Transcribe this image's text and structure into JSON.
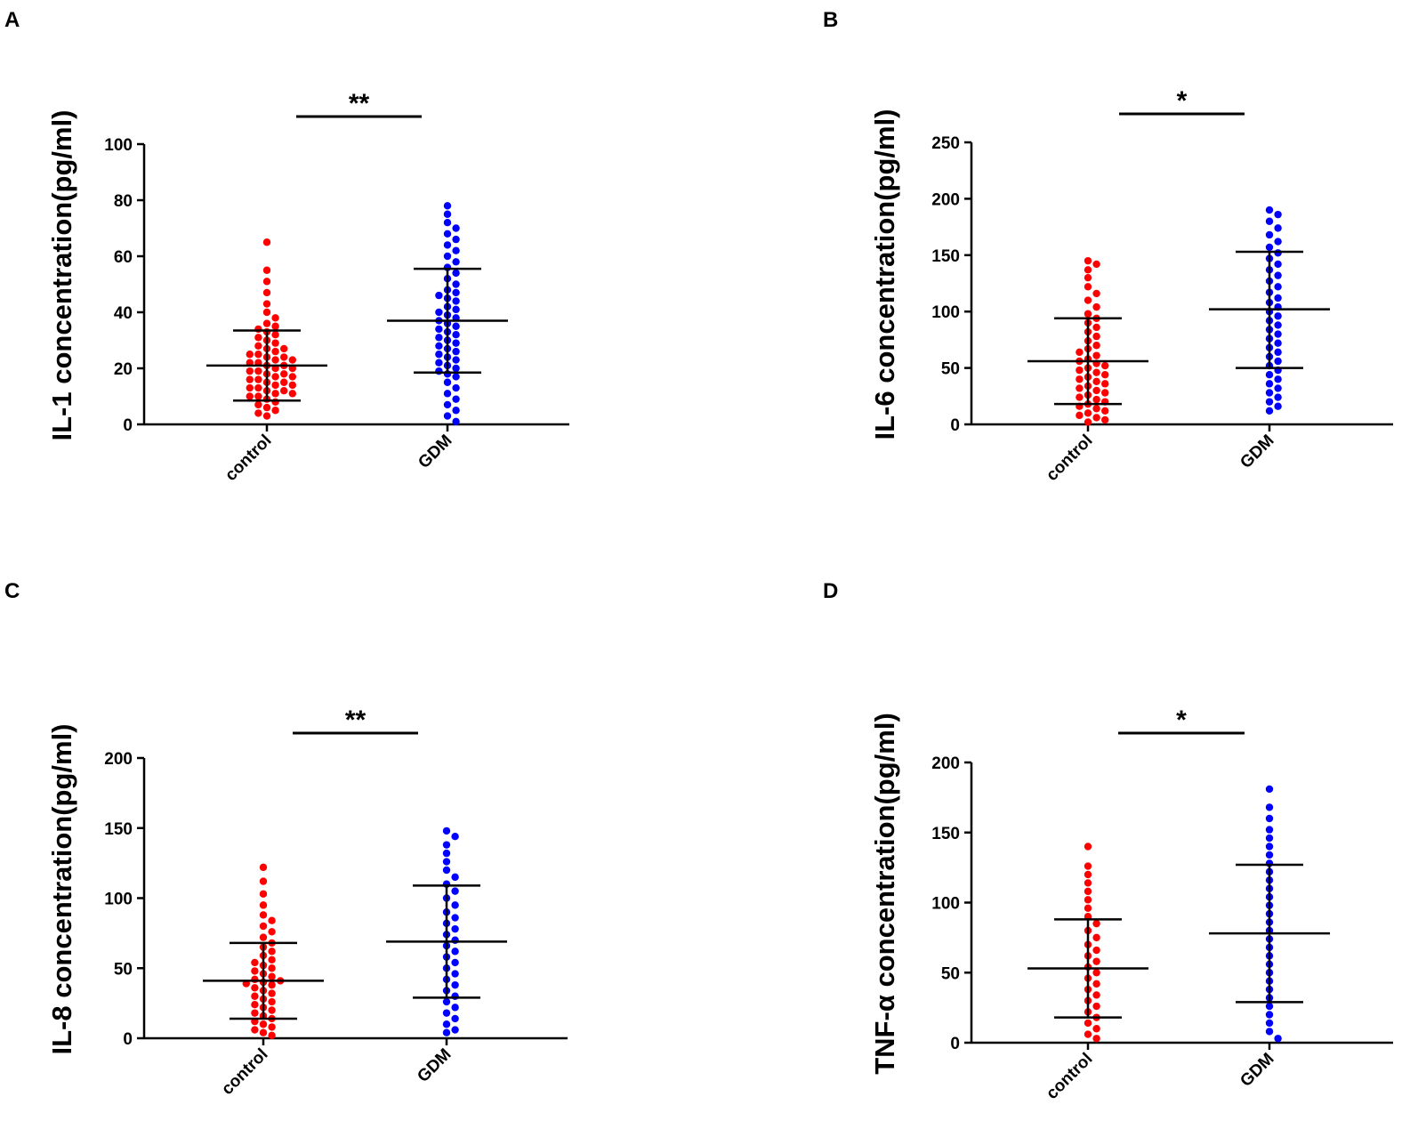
{
  "chart_data": [
    {
      "type": "scatter",
      "panel": "A",
      "ylabel": "IL-1 concentration(pg/ml)",
      "ylim": [
        0,
        100
      ],
      "yticks": [
        0,
        20,
        40,
        60,
        80,
        100
      ],
      "categories": [
        "control",
        "GDM"
      ],
      "significance": "**",
      "colors": [
        "#ff0000",
        "#0000ff"
      ],
      "series": [
        {
          "name": "control",
          "mean": 21,
          "sd_upper": 33.5,
          "sd_lower": 8.5,
          "values": [
            65,
            55,
            51,
            47,
            43,
            40,
            38,
            36,
            35,
            34,
            33,
            32,
            31,
            30,
            29,
            28,
            27,
            27,
            26,
            25,
            25,
            24,
            24,
            23,
            23,
            22,
            22,
            21,
            21,
            20,
            20,
            19,
            19,
            18,
            18,
            17,
            17,
            16,
            16,
            15,
            15,
            14,
            14,
            13,
            13,
            12,
            12,
            11,
            11,
            10,
            10,
            9,
            8,
            7,
            6,
            5,
            4,
            3
          ]
        },
        {
          "name": "GDM",
          "mean": 37,
          "sd_upper": 55.5,
          "sd_lower": 18.5,
          "values": [
            78,
            75,
            72,
            70,
            68,
            66,
            64,
            62,
            60,
            58,
            56,
            54,
            52,
            50,
            48,
            47,
            46,
            45,
            44,
            42,
            41,
            40,
            39,
            38,
            37,
            36,
            35,
            34,
            33,
            32,
            31,
            30,
            29,
            28,
            27,
            26,
            25,
            24,
            23,
            22,
            21,
            20,
            19,
            18,
            17,
            15,
            13,
            11,
            9,
            7,
            5,
            3,
            1
          ]
        }
      ]
    },
    {
      "type": "scatter",
      "panel": "B",
      "ylabel": "IL-6 concentration(pg/ml)",
      "ylim": [
        0,
        250
      ],
      "yticks": [
        0,
        50,
        100,
        150,
        200,
        250
      ],
      "categories": [
        "control",
        "GDM"
      ],
      "significance": "*",
      "colors": [
        "#ff0000",
        "#0000ff"
      ],
      "series": [
        {
          "name": "control",
          "mean": 56,
          "sd_upper": 94,
          "sd_lower": 18,
          "values": [
            145,
            142,
            137,
            130,
            122,
            116,
            110,
            104,
            98,
            94,
            90,
            86,
            82,
            78,
            74,
            70,
            67,
            64,
            61,
            58,
            56,
            54,
            52,
            50,
            48,
            46,
            44,
            42,
            40,
            38,
            36,
            34,
            32,
            30,
            28,
            26,
            24,
            22,
            20,
            18,
            16,
            14,
            12,
            10,
            8,
            6,
            4,
            2
          ]
        },
        {
          "name": "GDM",
          "mean": 102,
          "sd_upper": 153,
          "sd_lower": 50,
          "values": [
            190,
            186,
            180,
            174,
            168,
            162,
            157,
            152,
            147,
            142,
            137,
            132,
            127,
            122,
            117,
            112,
            108,
            104,
            100,
            96,
            92,
            88,
            84,
            80,
            76,
            72,
            68,
            64,
            60,
            56,
            52,
            48,
            44,
            40,
            36,
            32,
            28,
            24,
            20,
            16,
            12
          ]
        }
      ]
    },
    {
      "type": "scatter",
      "panel": "C",
      "ylabel": "IL-8 concentration(pg/ml)",
      "ylim": [
        0,
        200
      ],
      "yticks": [
        0,
        50,
        100,
        150,
        200
      ],
      "categories": [
        "control",
        "GDM"
      ],
      "significance": "**",
      "colors": [
        "#ff0000",
        "#0000ff"
      ],
      "series": [
        {
          "name": "control",
          "mean": 41,
          "sd_upper": 68,
          "sd_lower": 14,
          "values": [
            122,
            112,
            103,
            95,
            88,
            84,
            80,
            76,
            72,
            68,
            65,
            62,
            59,
            56,
            54,
            52,
            50,
            48,
            46,
            44,
            42,
            41,
            40,
            39,
            38,
            36,
            34,
            32,
            30,
            28,
            26,
            24,
            22,
            20,
            18,
            16,
            14,
            12,
            10,
            8,
            6,
            4,
            2
          ]
        },
        {
          "name": "GDM",
          "mean": 69,
          "sd_upper": 109,
          "sd_lower": 29,
          "values": [
            148,
            144,
            138,
            132,
            126,
            120,
            115,
            110,
            105,
            100,
            95,
            90,
            86,
            82,
            78,
            74,
            70,
            66,
            62,
            58,
            54,
            50,
            46,
            42,
            38,
            34,
            30,
            26,
            22,
            18,
            14,
            10,
            6,
            4
          ]
        }
      ]
    },
    {
      "type": "scatter",
      "panel": "D",
      "ylabel": "TNF-α concentration(pg/ml)",
      "ylim": [
        0,
        200
      ],
      "yticks": [
        0,
        50,
        100,
        150,
        200
      ],
      "categories": [
        "control",
        "GDM"
      ],
      "significance": "*",
      "colors": [
        "#ff0000",
        "#0000ff"
      ],
      "series": [
        {
          "name": "control",
          "mean": 53,
          "sd_upper": 88,
          "sd_lower": 18,
          "values": [
            140,
            126,
            120,
            114,
            108,
            102,
            96,
            90,
            85,
            80,
            75,
            70,
            66,
            62,
            58,
            54,
            50,
            46,
            42,
            38,
            34,
            30,
            26,
            22,
            18,
            14,
            10,
            6,
            3
          ]
        },
        {
          "name": "GDM",
          "mean": 78,
          "sd_upper": 127,
          "sd_lower": 29,
          "values": [
            181,
            168,
            160,
            152,
            146,
            140,
            134,
            128,
            122,
            116,
            110,
            104,
            98,
            92,
            86,
            80,
            74,
            68,
            62,
            56,
            50,
            44,
            38,
            32,
            26,
            20,
            14,
            8,
            3
          ]
        }
      ]
    }
  ]
}
